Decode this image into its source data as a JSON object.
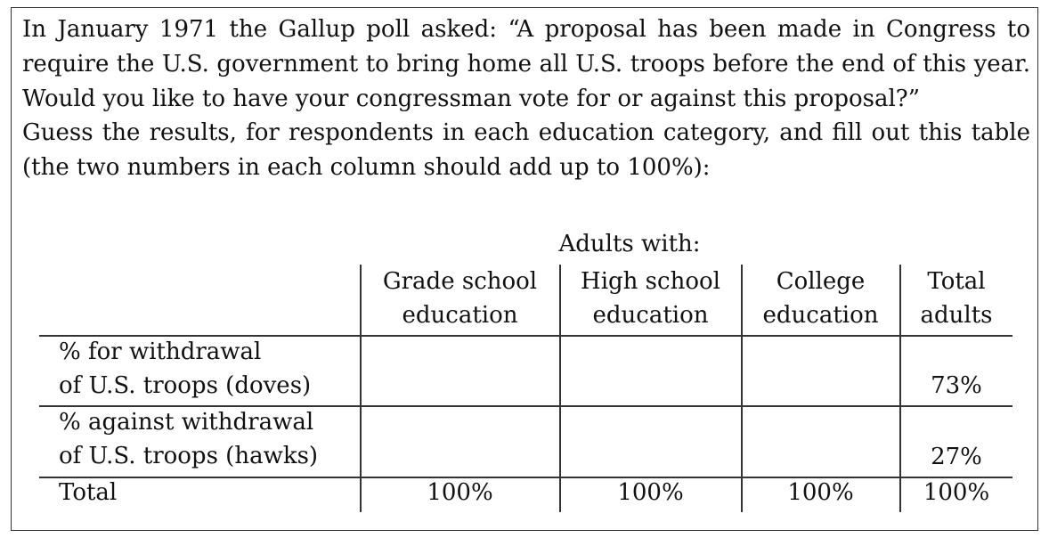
{
  "prompt": {
    "paragraph1": "In January 1971 the Gallup poll asked: “A proposal has been made in Congress to require the U.S. government to bring home all U.S. troops before the end of this year. Would you like to have your congressman vote for or against this proposal?”",
    "paragraph2": "Guess the results, for respondents in each education category, and fill out this table (the two numbers in each column should add up to 100%):"
  },
  "table": {
    "heading": "Adults with:",
    "columns": [
      {
        "line1": "Grade school",
        "line2": "education"
      },
      {
        "line1": "High school",
        "line2": "education"
      },
      {
        "line1": "College",
        "line2": "education"
      },
      {
        "line1": "Total",
        "line2": "adults"
      }
    ],
    "rows": [
      {
        "label_line1": "% for withdrawal",
        "label_line2": "of U.S. troops (doves)",
        "values": [
          "",
          "",
          "",
          "73%"
        ]
      },
      {
        "label_line1": "% against withdrawal",
        "label_line2": "of U.S. troops (hawks)",
        "values": [
          "",
          "",
          "",
          "27%"
        ]
      },
      {
        "label_line1": "Total",
        "values": [
          "100%",
          "100%",
          "100%",
          "100%"
        ]
      }
    ]
  }
}
